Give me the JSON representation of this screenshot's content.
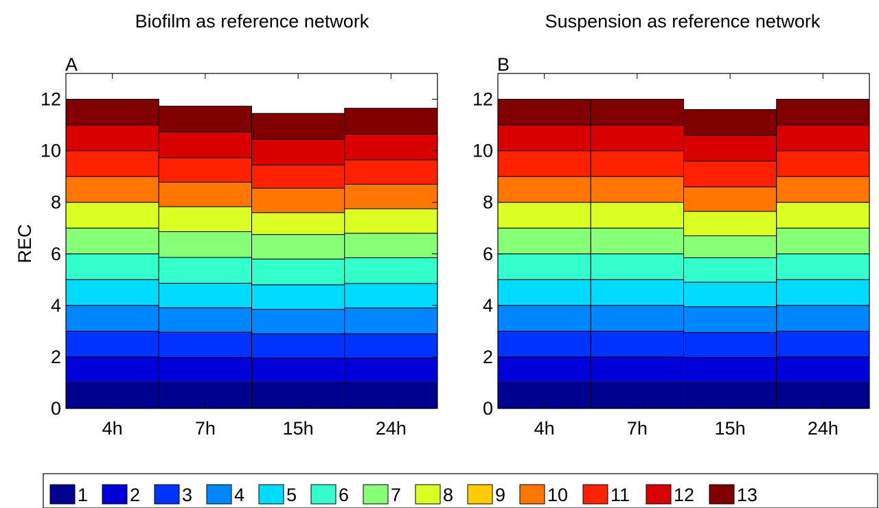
{
  "chart_data": {
    "type": "bar",
    "stacked": true,
    "ylabel": "REC",
    "ylim": [
      0,
      13
    ],
    "yticks": [
      0,
      2,
      4,
      6,
      8,
      10,
      12
    ],
    "categories": [
      "4h",
      "7h",
      "15h",
      "24h"
    ],
    "grid": false,
    "legend_position": "bottom",
    "legend": [
      "1",
      "2",
      "3",
      "4",
      "5",
      "6",
      "7",
      "8",
      "9",
      "10",
      "11",
      "12",
      "13"
    ],
    "colors": [
      "#00008f",
      "#0000d9",
      "#0033ff",
      "#0087ff",
      "#00dbff",
      "#33ffcc",
      "#87ff77",
      "#dbff22",
      "#ffcc00",
      "#ff7700",
      "#ff2200",
      "#d90000",
      "#800000"
    ],
    "panels": [
      {
        "label": "A",
        "title": "Biofilm as reference network",
        "layer_values": [
          [
            1.0,
            1.0,
            1.0,
            1.0,
            1.0,
            1.0,
            1.0,
            1.0,
            0.0,
            1.0,
            1.0,
            1.0,
            1.0
          ],
          [
            1.0,
            0.98,
            0.98,
            0.95,
            0.95,
            1.0,
            1.0,
            0.97,
            0.0,
            0.95,
            0.95,
            1.0,
            1.0
          ],
          [
            1.0,
            0.95,
            0.95,
            0.95,
            0.95,
            1.0,
            0.95,
            0.85,
            0.0,
            0.95,
            0.9,
            1.0,
            1.0
          ],
          [
            1.0,
            0.95,
            0.95,
            1.0,
            0.95,
            1.0,
            0.95,
            0.95,
            0.0,
            0.95,
            0.95,
            1.0,
            1.0
          ]
        ]
      },
      {
        "label": "B",
        "title": "Suspension as reference network",
        "layer_values": [
          [
            1.0,
            1.0,
            1.0,
            1.0,
            1.0,
            1.0,
            1.0,
            1.0,
            0.0,
            1.0,
            1.0,
            1.0,
            1.0
          ],
          [
            1.0,
            1.0,
            1.0,
            1.0,
            1.0,
            1.0,
            1.0,
            1.0,
            0.0,
            1.0,
            1.0,
            1.0,
            1.0
          ],
          [
            1.0,
            0.98,
            0.97,
            1.0,
            0.95,
            0.95,
            0.85,
            0.95,
            0.0,
            0.95,
            1.0,
            1.0,
            1.0
          ],
          [
            1.0,
            1.0,
            1.0,
            1.0,
            1.0,
            1.0,
            1.0,
            1.0,
            0.0,
            1.0,
            1.0,
            1.0,
            1.0
          ]
        ]
      }
    ]
  }
}
